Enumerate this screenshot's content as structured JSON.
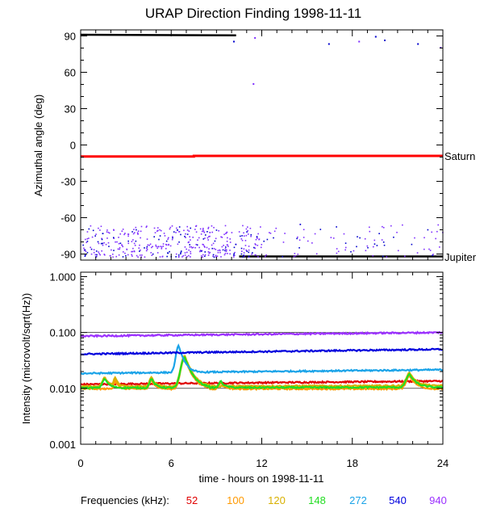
{
  "chart_data": [
    {
      "type": "scatter",
      "title": "URAP Direction Finding  1998-11-11",
      "ylabel": "Azimuthal angle (deg)",
      "xlim": [
        0,
        24
      ],
      "ylim": [
        -95,
        95
      ],
      "x_ticks": [
        "0",
        "6",
        "12",
        "18",
        "24"
      ],
      "y_ticks": [
        "90",
        "60",
        "30",
        "0",
        "-30",
        "-60",
        "-90"
      ],
      "y_tick_values": [
        90,
        60,
        30,
        0,
        -30,
        -60,
        -90
      ],
      "reference_lines": [
        {
          "label": "Saturn",
          "color": "#ff0000",
          "x": [
            0,
            7.5,
            7.5,
            24
          ],
          "y": [
            -9.5,
            -9.5,
            -9,
            -9
          ]
        },
        {
          "label": "Jupiter",
          "color": "#000000",
          "x": [
            10.5,
            24
          ],
          "y": [
            -92,
            -92
          ]
        }
      ],
      "extra_segments": [
        {
          "color": "#000000",
          "x": [
            0,
            10.3
          ],
          "y": [
            91,
            90.5
          ]
        }
      ],
      "scatter_groups": [
        {
          "color": "#7f2fff",
          "x_range": [
            0.1,
            12
          ],
          "y_range": [
            -92,
            -66
          ],
          "count": 320
        },
        {
          "color": "#0000cd",
          "x_range": [
            0.1,
            12
          ],
          "y_range": [
            -92,
            -66
          ],
          "count": 90
        },
        {
          "color": "#7f2fff",
          "x_range": [
            12,
            24
          ],
          "y_range": [
            -92,
            -64
          ],
          "count": 60
        },
        {
          "color": "#0000cd",
          "x_range": [
            12,
            24
          ],
          "y_range": [
            -92,
            -64
          ],
          "count": 25
        }
      ],
      "outliers": [
        {
          "x": 11.4,
          "y": 51,
          "color": "#7f2fff"
        },
        {
          "x": 11.5,
          "y": 89,
          "color": "#7f2fff"
        },
        {
          "x": 10.1,
          "y": 86,
          "color": "#0000cd"
        },
        {
          "x": 16.4,
          "y": 84,
          "color": "#0000cd"
        },
        {
          "x": 19.5,
          "y": 90,
          "color": "#0000cd"
        },
        {
          "x": 20.1,
          "y": 87,
          "color": "#0000cd"
        },
        {
          "x": 22.3,
          "y": 84,
          "color": "#0000cd"
        },
        {
          "x": 23.8,
          "y": 81,
          "color": "#7f2fff"
        },
        {
          "x": 18.4,
          "y": 86,
          "color": "#7f2fff"
        }
      ]
    },
    {
      "type": "line",
      "ylabel": "Intensity (microvolt/sqrt(Hz))",
      "xlabel": "time - hours on 1998-11-11",
      "yscale": "log",
      "xlim": [
        0,
        24
      ],
      "ylim": [
        0.001,
        1.2
      ],
      "x_ticks": [
        "0",
        "6",
        "12",
        "18",
        "24"
      ],
      "y_ticks": [
        "1.000",
        "0.100",
        "0.010",
        "0.001"
      ],
      "y_tick_values": [
        1,
        0.1,
        0.01,
        0.001
      ],
      "legend_title": "Frequencies (kHz):",
      "series": [
        {
          "name": "52",
          "color": "#e00000",
          "base": 0.0118,
          "end": 0.0135
        },
        {
          "name": "100",
          "color": "#ff9900",
          "base": 0.0098,
          "end": 0.0098
        },
        {
          "name": "120",
          "color": "#d8b000",
          "base": 0.0108,
          "end": 0.0112
        },
        {
          "name": "148",
          "color": "#22dd22",
          "base": 0.0102,
          "end": 0.0105
        },
        {
          "name": "272",
          "color": "#1aa3e8",
          "base": 0.0185,
          "end": 0.0215
        },
        {
          "name": "540",
          "color": "#0000dd",
          "base": 0.041,
          "end": 0.05
        },
        {
          "name": "940",
          "color": "#9b30ff",
          "base": 0.086,
          "end": 0.1
        }
      ],
      "bursts": [
        {
          "hour": 1.6,
          "amp": 0.45,
          "width": 0.35,
          "series": [
            "148",
            "120"
          ]
        },
        {
          "hour": 2.3,
          "amp": 0.4,
          "width": 0.25,
          "series": [
            "100",
            "120"
          ]
        },
        {
          "hour": 4.7,
          "amp": 0.45,
          "width": 0.3,
          "series": [
            "148",
            "100",
            "120"
          ]
        },
        {
          "hour": 6.9,
          "amp": 2.5,
          "width": 0.55,
          "series": [
            "148",
            "120",
            "100"
          ]
        },
        {
          "hour": 6.5,
          "amp": 2.0,
          "width": 0.4,
          "series": [
            "272"
          ]
        },
        {
          "hour": 9.3,
          "amp": 0.3,
          "width": 0.3,
          "series": [
            "148",
            "100"
          ]
        },
        {
          "hour": 21.8,
          "amp": 0.7,
          "width": 0.5,
          "series": [
            "100",
            "120",
            "148"
          ]
        }
      ]
    }
  ]
}
